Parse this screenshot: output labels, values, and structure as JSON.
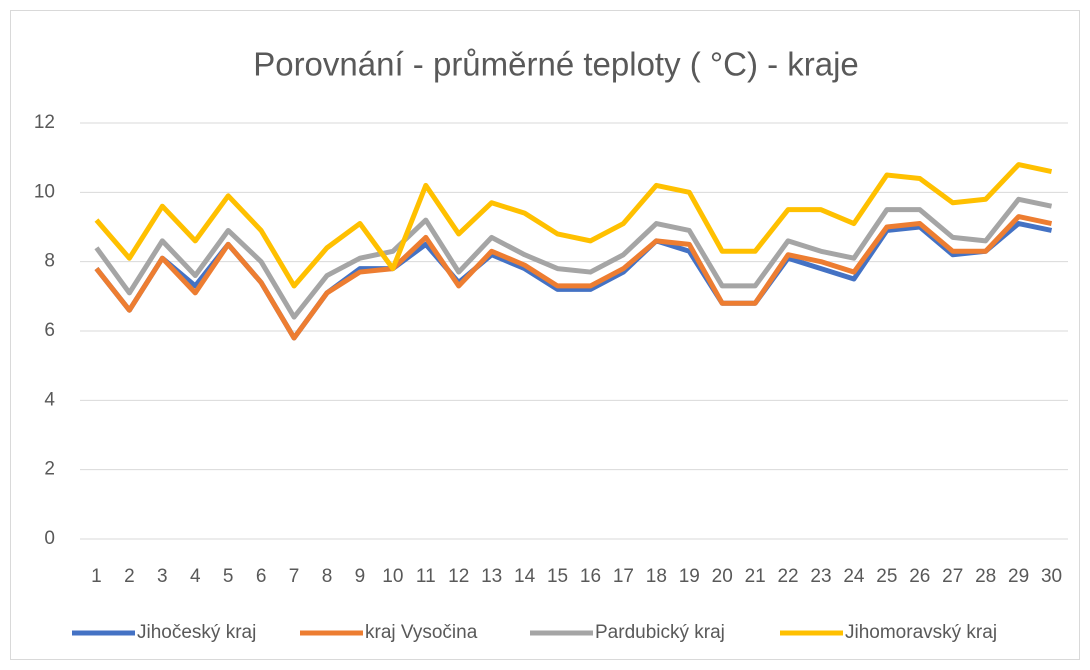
{
  "chart_data": {
    "type": "line",
    "title": "Porovnání - průměrné teploty ( °C) - kraje",
    "categories": [
      "1",
      "2",
      "3",
      "4",
      "5",
      "6",
      "7",
      "8",
      "9",
      "10",
      "11",
      "12",
      "13",
      "14",
      "15",
      "16",
      "17",
      "18",
      "19",
      "20",
      "21",
      "22",
      "23",
      "24",
      "25",
      "26",
      "27",
      "28",
      "29",
      "30"
    ],
    "series": [
      {
        "name": "Jihočeský kraj",
        "color": "#4472c4",
        "values": [
          7.8,
          6.6,
          8.1,
          7.3,
          8.5,
          7.4,
          5.8,
          7.1,
          7.8,
          7.8,
          8.5,
          7.4,
          8.2,
          7.8,
          7.2,
          7.2,
          7.7,
          8.6,
          8.3,
          6.8,
          6.8,
          8.1,
          7.8,
          7.5,
          8.9,
          9.0,
          8.2,
          8.3,
          9.1,
          8.9
        ]
      },
      {
        "name": "kraj Vysočina",
        "color": "#ed7d31",
        "values": [
          7.8,
          6.6,
          8.1,
          7.1,
          8.5,
          7.4,
          5.8,
          7.1,
          7.7,
          7.8,
          8.7,
          7.3,
          8.3,
          7.9,
          7.3,
          7.3,
          7.8,
          8.6,
          8.5,
          6.8,
          6.8,
          8.2,
          8.0,
          7.7,
          9.0,
          9.1,
          8.3,
          8.3,
          9.3,
          9.1
        ]
      },
      {
        "name": "Pardubický kraj",
        "color": "#a5a5a5",
        "values": [
          8.4,
          7.1,
          8.6,
          7.6,
          8.9,
          8.0,
          6.4,
          7.6,
          8.1,
          8.3,
          9.2,
          7.7,
          8.7,
          8.2,
          7.8,
          7.7,
          8.2,
          9.1,
          8.9,
          7.3,
          7.3,
          8.6,
          8.3,
          8.1,
          9.5,
          9.5,
          8.7,
          8.6,
          9.8,
          9.6
        ]
      },
      {
        "name": "Jihomoravský kraj",
        "color": "#ffc000",
        "values": [
          9.2,
          8.1,
          9.6,
          8.6,
          9.9,
          8.9,
          7.3,
          8.4,
          9.1,
          7.8,
          10.2,
          8.8,
          9.7,
          9.4,
          8.8,
          8.6,
          9.1,
          10.2,
          10.0,
          8.3,
          8.3,
          9.5,
          9.5,
          9.1,
          10.5,
          10.4,
          9.7,
          9.8,
          10.8,
          10.6
        ]
      }
    ],
    "ylim": [
      0,
      12
    ],
    "yticks": [
      0,
      2,
      4,
      6,
      8,
      10,
      12
    ],
    "grid": true,
    "legend": "bottom"
  }
}
